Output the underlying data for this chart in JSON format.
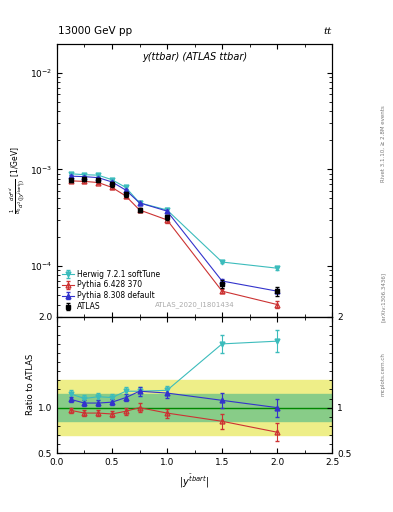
{
  "title_top": "13000 GeV pp",
  "title_right": "tt",
  "plot_title": "y(ttbar) (ATLAS ttbar)",
  "watermark": "ATLAS_2020_I1801434",
  "right_label1": "Rivet 3.1.10, ≥ 2.8M events",
  "right_label2": "[arXiv:1306.3436]",
  "right_label3": "mcplots.cern.ch",
  "x_data": [
    0.125,
    0.25,
    0.375,
    0.5,
    0.625,
    0.75,
    1.0,
    1.5,
    2.0
  ],
  "atlas_y": [
    0.00078,
    0.0008,
    0.00078,
    0.0007,
    0.00055,
    0.00038,
    0.00032,
    6.5e-05,
    5.5e-05
  ],
  "atlas_yerr": [
    4e-05,
    4e-05,
    4e-05,
    4e-05,
    3e-05,
    2e-05,
    2e-05,
    6e-06,
    6e-06
  ],
  "herwig_y": [
    0.0009,
    0.00088,
    0.00087,
    0.00078,
    0.00065,
    0.00045,
    0.00038,
    0.00011,
    9.5e-05
  ],
  "herwig_yerr": [
    2e-05,
    2e-05,
    2e-05,
    2e-05,
    2e-05,
    2e-05,
    2e-05,
    3e-06,
    3e-06
  ],
  "pythia6_y": [
    0.00076,
    0.00075,
    0.00073,
    0.00065,
    0.00053,
    0.00038,
    0.0003,
    5.5e-05,
    4e-05
  ],
  "pythia6_yerr": [
    2e-05,
    2e-05,
    2e-05,
    2e-05,
    2e-05,
    2e-05,
    2e-05,
    3e-06,
    3e-06
  ],
  "pythia8_y": [
    0.00085,
    0.00084,
    0.00082,
    0.00074,
    0.00061,
    0.00045,
    0.00037,
    7e-05,
    5.5e-05
  ],
  "pythia8_yerr": [
    2e-05,
    2e-05,
    2e-05,
    2e-05,
    2e-05,
    2e-05,
    2e-05,
    3e-06,
    3e-06
  ],
  "ratio_x": [
    0.125,
    0.25,
    0.375,
    0.5,
    0.625,
    0.75,
    1.0,
    1.5,
    2.0
  ],
  "herwig_ratio": [
    1.15,
    1.1,
    1.12,
    1.11,
    1.18,
    1.18,
    1.19,
    1.7,
    1.73
  ],
  "herwig_ratio_err": [
    0.04,
    0.04,
    0.04,
    0.04,
    0.05,
    0.05,
    0.05,
    0.1,
    0.12
  ],
  "pythia6_ratio": [
    0.97,
    0.94,
    0.94,
    0.93,
    0.96,
    1.0,
    0.94,
    0.85,
    0.73
  ],
  "pythia6_ratio_err": [
    0.03,
    0.03,
    0.03,
    0.03,
    0.04,
    0.05,
    0.05,
    0.08,
    0.1
  ],
  "pythia8_ratio": [
    1.09,
    1.05,
    1.05,
    1.06,
    1.11,
    1.18,
    1.16,
    1.08,
    1.0
  ],
  "pythia8_ratio_err": [
    0.03,
    0.03,
    0.03,
    0.03,
    0.04,
    0.05,
    0.05,
    0.08,
    0.1
  ],
  "band_yellow_lo": 0.7,
  "band_yellow_hi": 1.3,
  "band_green_lo": 0.85,
  "band_green_hi": 1.15,
  "herwig_color": "#3cbcbc",
  "pythia6_color": "#cc3333",
  "pythia8_color": "#3333cc",
  "atlas_color": "#000000",
  "green_line_color": "#008800",
  "yellow_color": "#eeee88",
  "green_color": "#88cc88",
  "xlim": [
    0.0,
    2.5
  ],
  "ylim_main": [
    3e-05,
    0.02
  ],
  "ylim_ratio": [
    0.5,
    2.0
  ],
  "background_color": "#ffffff"
}
